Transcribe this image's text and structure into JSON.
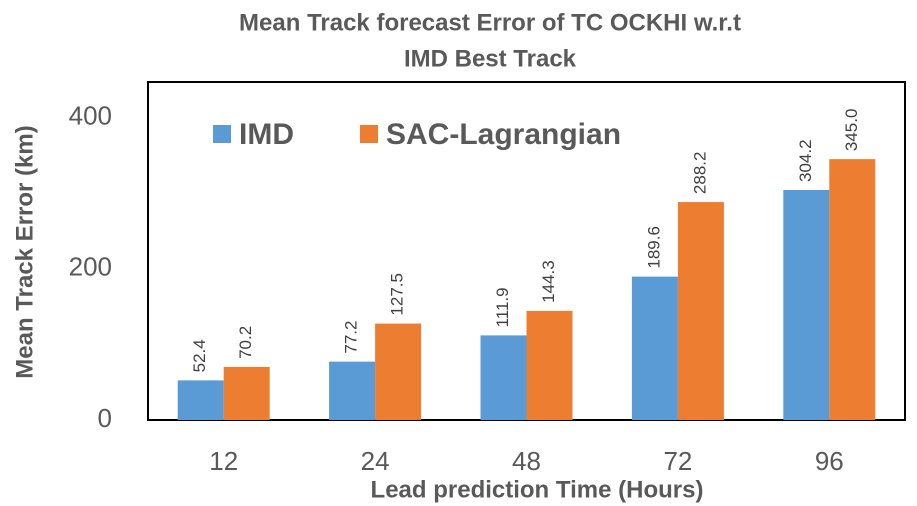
{
  "chart_data": {
    "type": "bar",
    "title": [
      "Mean Track forecast Error of TC OCKHI w.r.t",
      "IMD Best Track"
    ],
    "x_label": "Lead prediction Time (Hours)",
    "y_label": "Mean Track Error (km)",
    "categories": [
      "12",
      "24",
      "48",
      "72",
      "96"
    ],
    "series": [
      {
        "name": "IMD",
        "color": "#5b9bd5",
        "values": [
          52.4,
          77.2,
          111.9,
          189.6,
          304.2
        ],
        "value_labels": [
          "52.4",
          "77.2",
          "111.9",
          "189.6",
          "304.2"
        ]
      },
      {
        "name": "SAC-Lagrangian",
        "color": "#ed7d31",
        "values": [
          70.2,
          127.5,
          144.3,
          288.2,
          345.0
        ],
        "value_labels": [
          "70.2",
          "127.5",
          "144.3",
          "288.2",
          "345.0"
        ]
      }
    ],
    "ylim": [
      0,
      447
    ],
    "yticks": [
      0,
      200,
      400
    ],
    "grid": false,
    "legend": "top-left"
  }
}
